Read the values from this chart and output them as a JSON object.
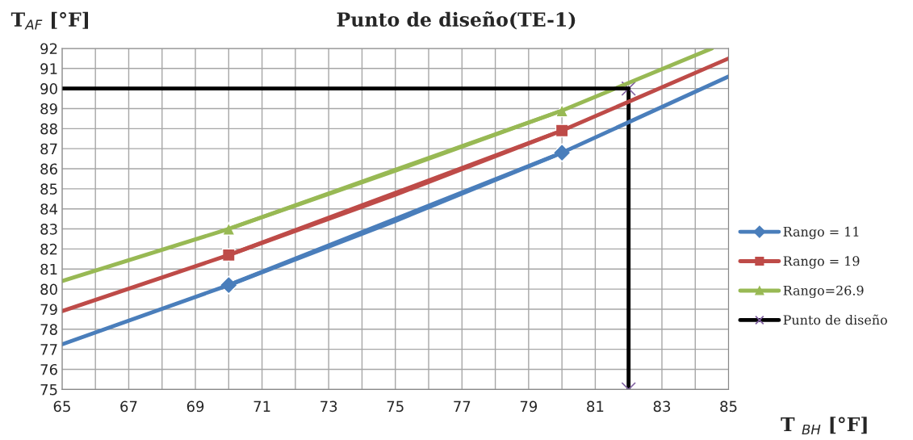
{
  "chart_data": {
    "type": "line",
    "title": "Punto de diseño(TE-1)",
    "xlabel": "T $_{BH}$ [°F]",
    "ylabel": "T$_{AF}$ [°F]",
    "xlim": [
      65,
      85
    ],
    "ylim": [
      75,
      92
    ],
    "xticks": [
      65,
      {
        "value": 66,
        "label": null
      },
      67,
      {
        "value": 68,
        "label": null
      },
      69,
      {
        "value": 70,
        "label": null
      },
      71,
      {
        "value": 72,
        "label": null
      },
      73,
      {
        "value": 74,
        "label": null
      },
      75,
      {
        "value": 76,
        "label": null
      },
      77,
      {
        "value": 78,
        "label": null
      },
      79,
      {
        "value": 80,
        "label": null
      },
      81,
      {
        "value": 82,
        "label": null
      },
      83,
      {
        "value": 84,
        "label": null
      },
      85
    ],
    "yticks": [
      75,
      76,
      77,
      78,
      79,
      80,
      81,
      82,
      83,
      84,
      85,
      86,
      87,
      88,
      89,
      90,
      91,
      92
    ],
    "grid": true,
    "legend": "right",
    "series": [
      {
        "name": "Rango = 11",
        "x": [
          70,
          80
        ],
        "values": [
          80.2,
          86.8
        ],
        "color": "#4a7ebb",
        "marker": "diamond"
      },
      {
        "name": "Rango = 19",
        "x": [
          70,
          80
        ],
        "values": [
          81.7,
          87.9
        ],
        "color": "#be4b48",
        "marker": "square"
      },
      {
        "name": "Rango=26.9",
        "x": [
          70,
          80
        ],
        "values": [
          83.0,
          88.9
        ],
        "color": "#98b954",
        "marker": "triangle"
      },
      {
        "name": "Punto de diseño",
        "x": [
          82,
          82
        ],
        "values": [
          90,
          75
        ],
        "color": "#000000",
        "marker": "cross"
      },
      {
        "x": [
          65,
          70,
          75,
          80,
          85
        ],
        "values": [
          77.25,
          80.2,
          83.4,
          86.8,
          90.6
        ],
        "color": "#4a7ebb"
      },
      {
        "x": [
          65,
          70,
          75,
          80,
          85
        ],
        "values": [
          78.9,
          81.7,
          84.7,
          87.9,
          91.5
        ],
        "color": "#be4b48"
      },
      {
        "x": [
          65,
          70,
          75,
          80,
          84.5
        ],
        "values": [
          80.4,
          83.0,
          85.9,
          88.9,
          92.0
        ],
        "color": "#98b954"
      },
      {
        "x": [
          65,
          82
        ],
        "values": [
          90,
          90
        ],
        "color": "#000000"
      }
    ]
  }
}
